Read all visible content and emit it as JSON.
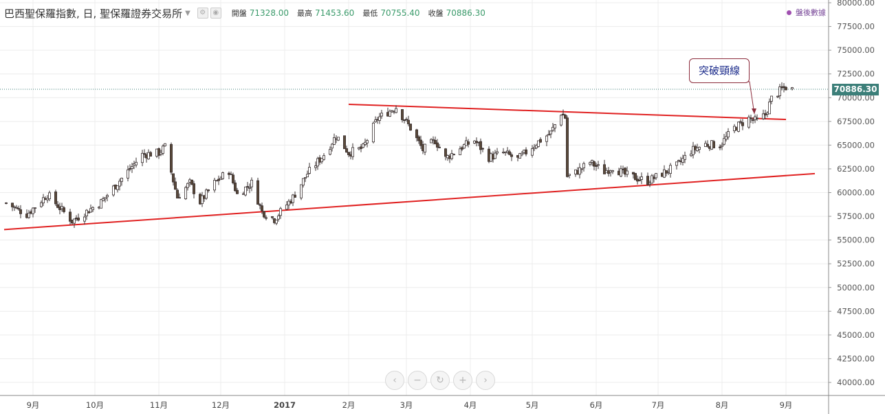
{
  "header": {
    "title": "巴西聖保羅指數, 日, 聖保羅證券交易所",
    "open_label": "開盤",
    "open": "71328.00",
    "high_label": "最高",
    "high": "71453.60",
    "low_label": "最低",
    "low": "70755.40",
    "close_label": "收盤",
    "close": "70886.30"
  },
  "after_hours": "盤後數據",
  "annotation": "突破頸線",
  "last_price_tag": "70886.30",
  "colors": {
    "up": "#ffffff",
    "down": "#5a4a3a",
    "wick": "#3a3030",
    "trendline": "#e02020",
    "price_line": "#3c7f79",
    "annotation_border": "#8b2a3a"
  },
  "icons": [
    "settings-icon",
    "hide-icon",
    "nav-prev-icon",
    "zoom-out-icon",
    "reset-icon",
    "zoom-in-icon",
    "nav-next-icon"
  ],
  "chart_data": {
    "type": "candlestick",
    "y_ticks": [
      "80000.00",
      "77500.00",
      "75000.00",
      "72500.00",
      "70000.00",
      "67500.00",
      "65000.00",
      "62500.00",
      "60000.00",
      "57500.00",
      "55000.00",
      "52500.00",
      "50000.00",
      "47500.00",
      "45000.00",
      "42500.00",
      "40000.00"
    ],
    "x_ticks": [
      {
        "label": "9月",
        "bold": false
      },
      {
        "label": "10月",
        "bold": false
      },
      {
        "label": "11月",
        "bold": false
      },
      {
        "label": "12月",
        "bold": false
      },
      {
        "label": "2017",
        "bold": true
      },
      {
        "label": "2月",
        "bold": false
      },
      {
        "label": "3月",
        "bold": false
      },
      {
        "label": "4月",
        "bold": false
      },
      {
        "label": "5月",
        "bold": false
      },
      {
        "label": "6月",
        "bold": false
      },
      {
        "label": "7月",
        "bold": false
      },
      {
        "label": "8月",
        "bold": false
      },
      {
        "label": "9月",
        "bold": false
      }
    ],
    "ylim": [
      38500,
      80400
    ],
    "last_price": 70886.3,
    "trendlines": [
      {
        "name": "resistance",
        "start": {
          "date": "2017-02-01",
          "value": 69300
        },
        "end": {
          "date": "2017-09-01",
          "value": 67700
        }
      },
      {
        "name": "support",
        "start": {
          "date": "2016-08-18",
          "value": 56100
        },
        "end": {
          "date": "2017-09-15",
          "value": 62000
        }
      }
    ],
    "close_waypoints": [
      [
        "2016-08-19",
        58900
      ],
      [
        "2016-08-29",
        57700
      ],
      [
        "2016-09-08",
        59800
      ],
      [
        "2016-09-20",
        57000
      ],
      [
        "2016-10-04",
        59000
      ],
      [
        "2016-10-14",
        61500
      ],
      [
        "2016-10-24",
        64000
      ],
      [
        "2016-11-01",
        64200
      ],
      [
        "2016-11-04",
        64800
      ],
      [
        "2016-11-10",
        59500
      ],
      [
        "2016-11-16",
        61000
      ],
      [
        "2016-11-21",
        59000
      ],
      [
        "2016-11-28",
        61000
      ],
      [
        "2016-12-05",
        62300
      ],
      [
        "2016-12-09",
        59800
      ],
      [
        "2016-12-16",
        61000
      ],
      [
        "2016-12-21",
        58000
      ],
      [
        "2016-12-27",
        57200
      ],
      [
        "2017-01-05",
        59500
      ],
      [
        "2017-01-12",
        62000
      ],
      [
        "2017-01-20",
        64000
      ],
      [
        "2017-01-26",
        66000
      ],
      [
        "2017-02-01",
        64200
      ],
      [
        "2017-02-08",
        64700
      ],
      [
        "2017-02-15",
        67800
      ],
      [
        "2017-02-24",
        69000
      ],
      [
        "2017-03-03",
        66800
      ],
      [
        "2017-03-09",
        64500
      ],
      [
        "2017-03-15",
        65500
      ],
      [
        "2017-03-20",
        63600
      ],
      [
        "2017-03-27",
        64700
      ],
      [
        "2017-04-03",
        65500
      ],
      [
        "2017-04-10",
        63700
      ],
      [
        "2017-04-17",
        64200
      ],
      [
        "2017-04-24",
        63500
      ],
      [
        "2017-05-03",
        65200
      ],
      [
        "2017-05-10",
        66300
      ],
      [
        "2017-05-15",
        68400
      ],
      [
        "2017-05-17",
        67900
      ],
      [
        "2017-05-18",
        61700
      ],
      [
        "2017-05-22",
        62100
      ],
      [
        "2017-05-29",
        63200
      ],
      [
        "2017-06-05",
        62200
      ],
      [
        "2017-06-09",
        62700
      ],
      [
        "2017-06-15",
        61900
      ],
      [
        "2017-06-21",
        61500
      ],
      [
        "2017-06-26",
        61200
      ],
      [
        "2017-07-03",
        62000
      ],
      [
        "2017-07-10",
        62800
      ],
      [
        "2017-07-17",
        64400
      ],
      [
        "2017-07-24",
        65100
      ],
      [
        "2017-07-31",
        65000
      ],
      [
        "2017-08-07",
        66800
      ],
      [
        "2017-08-14",
        67800
      ],
      [
        "2017-08-18",
        67500
      ],
      [
        "2017-08-22",
        68200
      ],
      [
        "2017-08-25",
        69900
      ],
      [
        "2017-08-30",
        70900
      ],
      [
        "2017-09-01",
        71100
      ],
      [
        "2017-09-04",
        70886
      ]
    ]
  }
}
